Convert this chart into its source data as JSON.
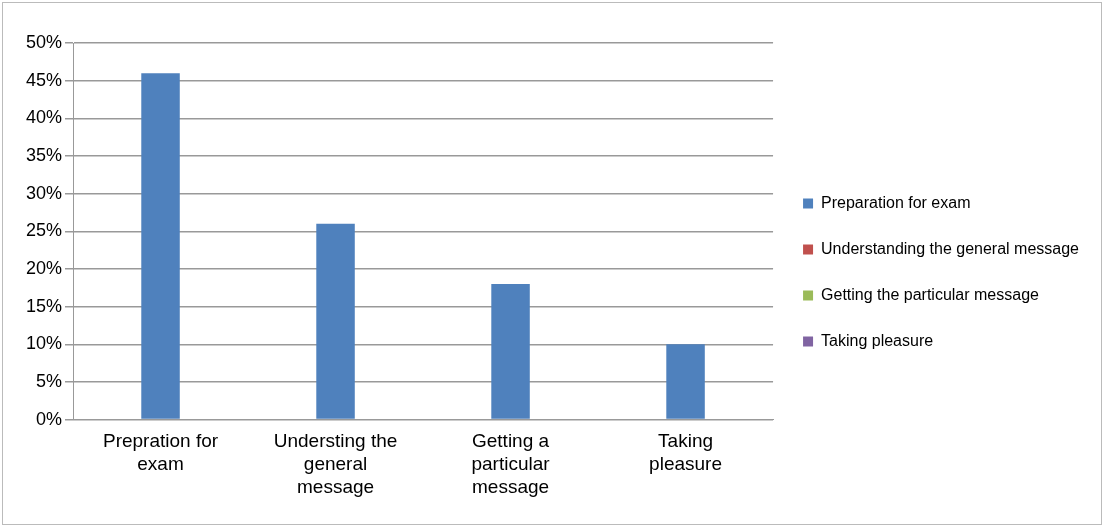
{
  "chart_data": {
    "type": "bar",
    "categories": [
      "Prepration for exam",
      "Understing the general message",
      "Getting a particular message",
      "Taking pleasure"
    ],
    "series": [
      {
        "name": "Preparation for exam",
        "color": "#4f81bd",
        "values": [
          46,
          26,
          18,
          10
        ]
      },
      {
        "name": "Understanding the general message",
        "color": "#c0504d",
        "values": [
          null,
          null,
          null,
          null
        ]
      },
      {
        "name": "Getting the particular message",
        "color": "#9bbb59",
        "values": [
          null,
          null,
          null,
          null
        ]
      },
      {
        "name": "Taking pleasure",
        "color": "#8064a2",
        "values": [
          null,
          null,
          null,
          null
        ]
      }
    ],
    "ylim": [
      0,
      50
    ],
    "yticks": [
      {
        "value": 0,
        "label": "0%"
      },
      {
        "value": 5,
        "label": "5%"
      },
      {
        "value": 10,
        "label": "10%"
      },
      {
        "value": 15,
        "label": "15%"
      },
      {
        "value": 20,
        "label": "20%"
      },
      {
        "value": 25,
        "label": "25%"
      },
      {
        "value": 30,
        "label": "30%"
      },
      {
        "value": 35,
        "label": "35%"
      },
      {
        "value": 40,
        "label": "40%"
      },
      {
        "value": 45,
        "label": "45%"
      },
      {
        "value": 50,
        "label": "50%"
      }
    ],
    "grid": "y",
    "legend": "right"
  }
}
